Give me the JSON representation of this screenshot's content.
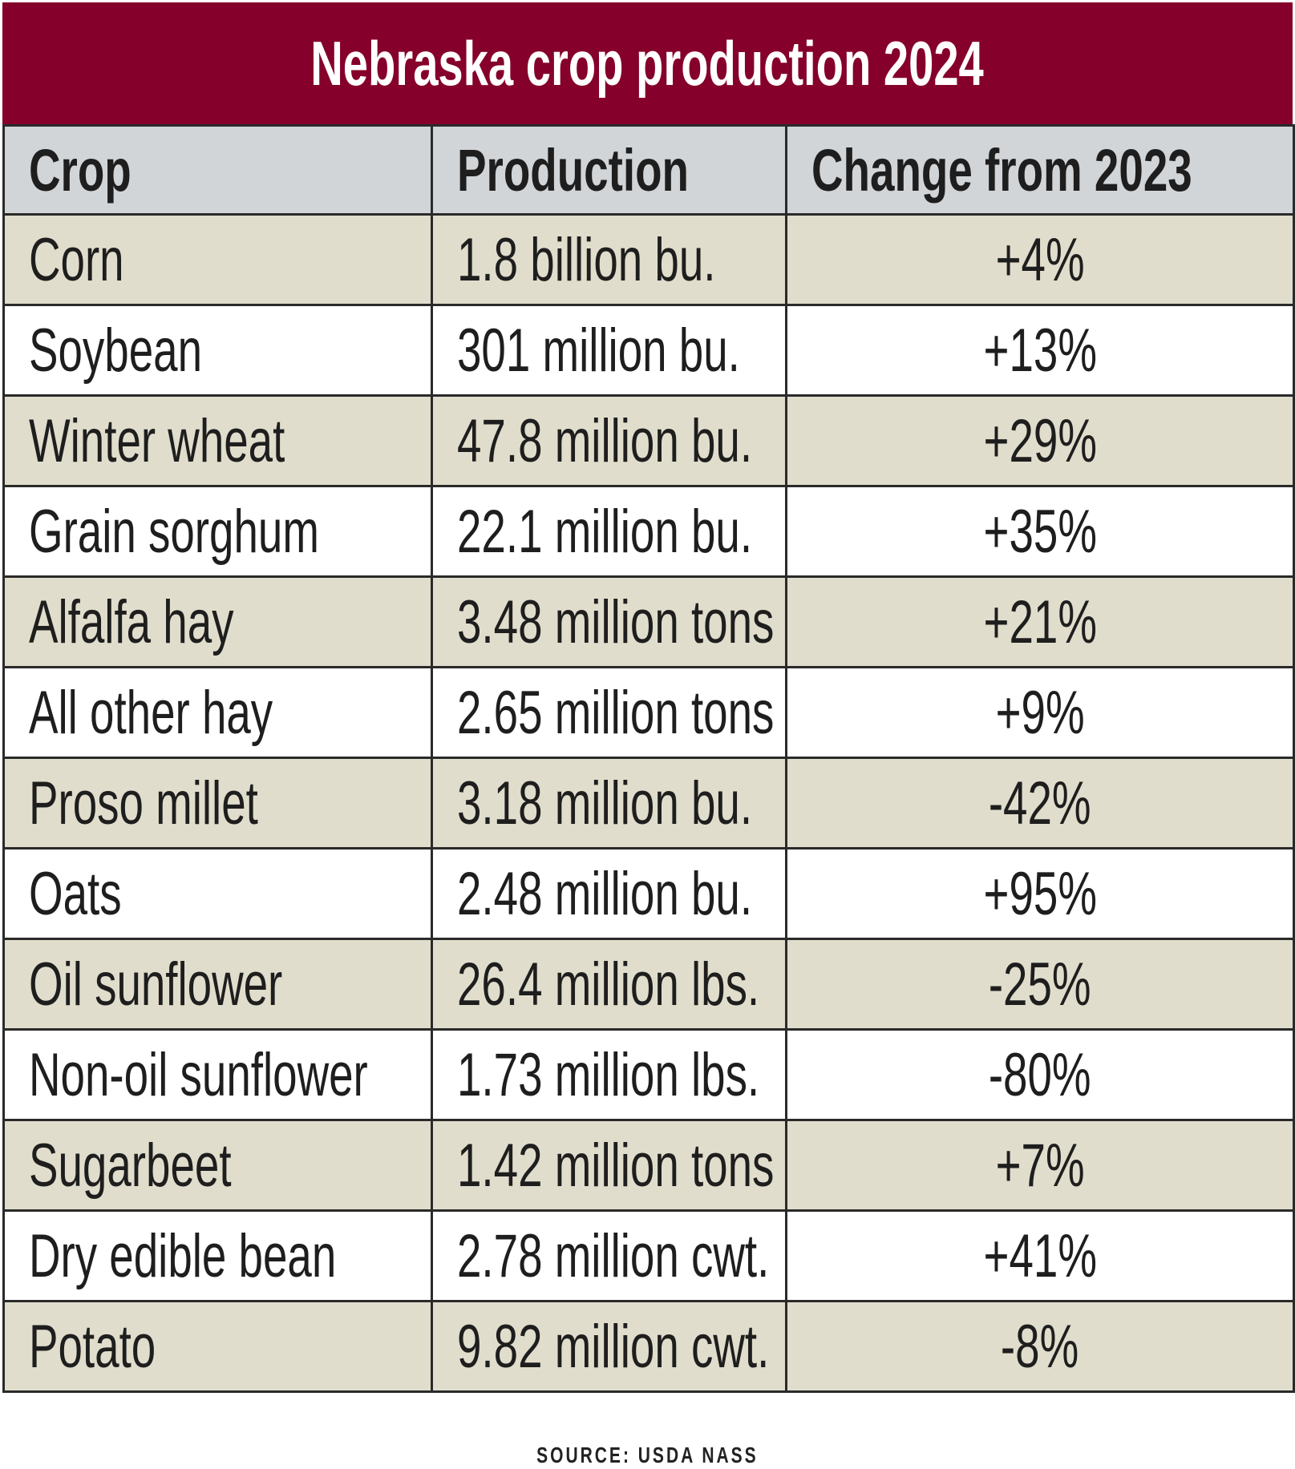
{
  "title": "Nebraska crop production 2024",
  "colors": {
    "title_bg": "#85002a",
    "header_bg": "#d2d5d8",
    "row_shaded": "#e1ddcc",
    "row_plain": "#ffffff"
  },
  "table": {
    "headers": [
      "Crop",
      "Production",
      "Change from 2023"
    ],
    "rows": [
      [
        "Corn",
        "1.8 billion bu.",
        "+4%"
      ],
      [
        "Soybean",
        "301 million bu.",
        "+13%"
      ],
      [
        "Winter wheat",
        "47.8 million bu.",
        "+29%"
      ],
      [
        "Grain sorghum",
        "22.1 million bu.",
        "+35%"
      ],
      [
        "Alfalfa hay",
        "3.48 million tons",
        "+21%"
      ],
      [
        "All other hay",
        "2.65 million tons",
        "+9%"
      ],
      [
        "Proso millet",
        "3.18 million bu.",
        "-42%"
      ],
      [
        "Oats",
        "2.48 million bu.",
        "+95%"
      ],
      [
        "Oil sunflower",
        "26.4 million lbs.",
        "-25%"
      ],
      [
        "Non-oil sunflower",
        "1.73 million lbs.",
        "-80%"
      ],
      [
        "Sugarbeet",
        "1.42 million tons",
        "+7%"
      ],
      [
        "Dry edible bean",
        "2.78 million cwt.",
        "+41%"
      ],
      [
        "Potato",
        "9.82 million cwt.",
        "-8%"
      ]
    ]
  },
  "source": "SOURCE: USDA NASS"
}
